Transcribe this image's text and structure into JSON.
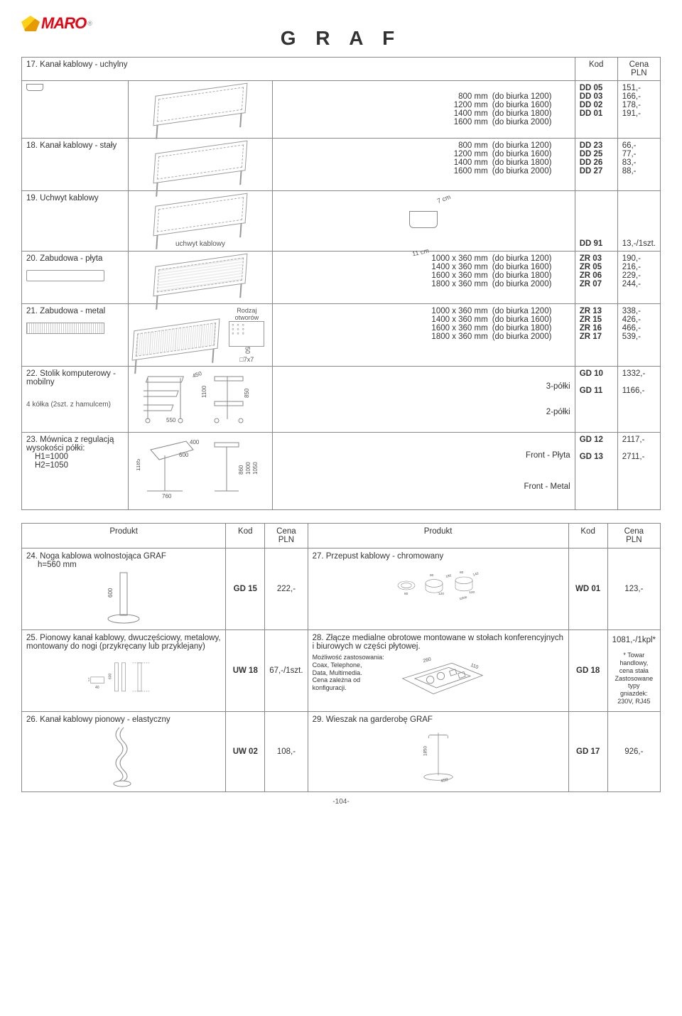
{
  "brand": "MARO",
  "title": "G R A F",
  "header_kod": "Kod",
  "header_cena": "Cena\nPLN",
  "sections": {
    "s17": {
      "label": "17. Kanał kablowy - uchylny",
      "rows": [
        {
          "dim": "800 mm",
          "desk": "(do biurka 1200)",
          "kod": "DD 05",
          "cena": "151,-"
        },
        {
          "dim": "1200 mm",
          "desk": "(do biurka 1600)",
          "kod": "DD 03",
          "cena": "166,-"
        },
        {
          "dim": "1400 mm",
          "desk": "(do biurka 1800)",
          "kod": "DD 02",
          "cena": "178,-"
        },
        {
          "dim": "1600 mm",
          "desk": "(do biurka 2000)",
          "kod": "DD 01",
          "cena": "191,-"
        }
      ]
    },
    "s18": {
      "label": "18. Kanał kablowy - stały",
      "rows": [
        {
          "dim": "800 mm",
          "desk": "(do biurka 1200)",
          "kod": "DD 23",
          "cena": "66,-"
        },
        {
          "dim": "1200 mm",
          "desk": "(do biurka 1600)",
          "kod": "DD 25",
          "cena": "77,-"
        },
        {
          "dim": "1400 mm",
          "desk": "(do biurka 1800)",
          "kod": "DD 26",
          "cena": "83,-"
        },
        {
          "dim": "1600 mm",
          "desk": "(do biurka 2000)",
          "kod": "DD 27",
          "cena": "88,-"
        }
      ]
    },
    "s19": {
      "label": "19. Uchwyt kablowy",
      "note": "uchwyt kablowy",
      "dims": {
        "w": "11 cm",
        "h": "7 cm"
      },
      "kod": "DD 91",
      "cena": "13,-/1szt."
    },
    "s20": {
      "label": "20. Zabudowa - płyta",
      "rows": [
        {
          "dim": "1000 x 360 mm",
          "desk": "(do biurka 1200)",
          "kod": "ZR 03",
          "cena": "190,-"
        },
        {
          "dim": "1400 x 360 mm",
          "desk": "(do biurka 1600)",
          "kod": "ZR 05",
          "cena": "216,-"
        },
        {
          "dim": "1600 x 360 mm",
          "desk": "(do biurka 1800)",
          "kod": "ZR 06",
          "cena": "229,-"
        },
        {
          "dim": "1800 x 360 mm",
          "desk": "(do biurka 2000)",
          "kod": "ZR 07",
          "cena": "244,-"
        }
      ]
    },
    "s21": {
      "label": "21. Zabudowa - metal",
      "holes_label": "Rodzaj otworów",
      "holes_dim1": "50",
      "holes_dim2": "□7x7",
      "rows": [
        {
          "dim": "1000 x 360 mm",
          "desk": "(do biurka 1200)",
          "kod": "ZR 13",
          "cena": "338,-"
        },
        {
          "dim": "1400 x 360 mm",
          "desk": "(do biurka 1600)",
          "kod": "ZR 15",
          "cena": "426,-"
        },
        {
          "dim": "1600 x 360 mm",
          "desk": "(do biurka 1800)",
          "kod": "ZR 16",
          "cena": "466,-"
        },
        {
          "dim": "1800 x 360 mm",
          "desk": "(do biurka 2000)",
          "kod": "ZR 17",
          "cena": "539,-"
        }
      ]
    },
    "s22": {
      "label": "22. Stolik komputerowy - mobilny",
      "note": "4 kółka (2szt. z hamulcem)",
      "dims": [
        "450",
        "550",
        "550",
        "1100",
        "850"
      ],
      "rows": [
        {
          "variant": "3-półki",
          "kod": "GD 10",
          "cena": "1332,-"
        },
        {
          "variant": "2-półki",
          "kod": "GD 11",
          "cena": "1166,-"
        }
      ]
    },
    "s23": {
      "label": "23. Mównica z regulacją wysokości półki:",
      "h1": "H1=1000",
      "h2": "H2=1050",
      "dims": [
        "1185",
        "760",
        "600",
        "400",
        "860",
        "1000",
        "1050"
      ],
      "rows": [
        {
          "variant": "Front - Płyta",
          "kod": "GD 12",
          "cena": "2117,-"
        },
        {
          "variant": "Front - Metal",
          "kod": "GD 13",
          "cena": "2711,-"
        }
      ]
    }
  },
  "bottom_header": {
    "produkt": "Produkt",
    "kod": "Kod",
    "cena": "Cena\nPLN"
  },
  "bottom": {
    "p24": {
      "title": "24. Noga kablowa wolnostojąca GRAF",
      "sub": "h=560 mm",
      "dim": "600",
      "kod": "GD 15",
      "cena": "222,-"
    },
    "p27": {
      "title": "27. Przepust kablowy - chromowany",
      "dims": [
        "80",
        "80",
        "120",
        "180",
        "80",
        "120",
        "140",
        "szkło"
      ],
      "kod": "WD 01",
      "cena": "123,-"
    },
    "p25": {
      "title": "25. Pionowy kanał kablowy, dwuczęściowy, metalowy, montowany do nogi (przykręcany lub przyklejany)",
      "dims": [
        "25",
        "40",
        "600"
      ],
      "kod": "UW 18",
      "cena": "67,-/1szt."
    },
    "p28": {
      "title": "28. Złącze medialne obrotowe montowane w stołach konferencyjnych i biurowych w części płytowej.",
      "desc": "Możliwość zastosowania:\nCoax, Telephone,\nData, Multimedia.\nCena zależna od\nkonfiguracji.",
      "dims": [
        "260",
        "110"
      ],
      "kod": "GD 18",
      "cena": "1081,-/1kpl*",
      "footnote": "* Towar handlowy,\ncena stała\nZastosowane typy\ngniazdek: 230V, RJ45"
    },
    "p26": {
      "title": "26. Kanał kablowy pionowy - elastyczny",
      "kod": "UW 02",
      "cena": "108,-"
    },
    "p29": {
      "title": "29. Wieszak na garderobę GRAF",
      "dims": [
        "1850",
        "450"
      ],
      "kod": "GD 17",
      "cena": "926,-"
    }
  },
  "page_num": "-104-"
}
